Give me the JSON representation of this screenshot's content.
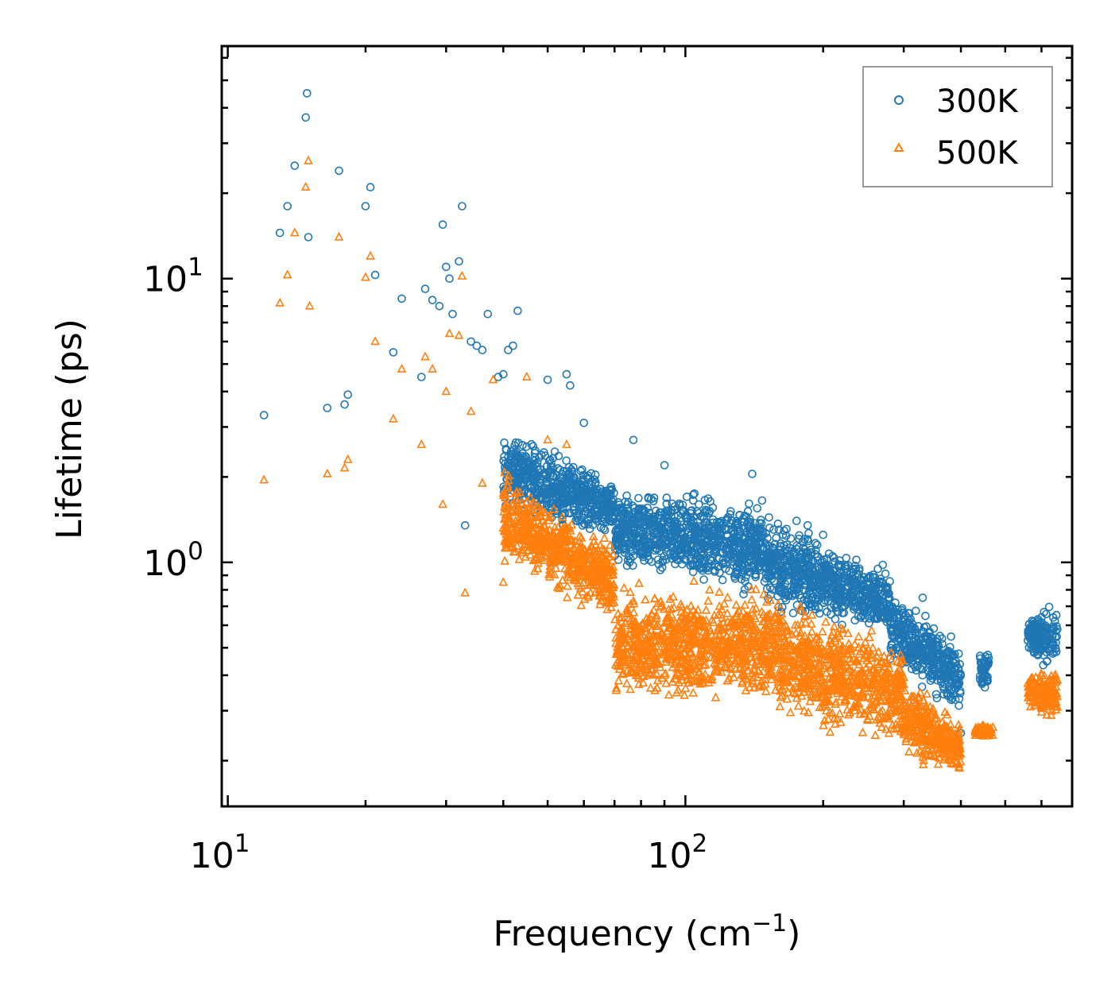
{
  "chart_data": {
    "type": "scatter",
    "title": "",
    "xlabel": "Frequency (cm",
    "xlabel_sup": "−1",
    "xlabel_close": ")",
    "ylabel": "Lifetime (ps)",
    "xscale": "log",
    "yscale": "log",
    "xlim": [
      9.7,
      700
    ],
    "ylim": [
      0.138,
      66
    ],
    "x_ticks": [
      {
        "value": 10,
        "base": "10",
        "exp": "1"
      },
      {
        "value": 100,
        "base": "10",
        "exp": "2"
      }
    ],
    "y_ticks": [
      {
        "value": 1,
        "base": "10",
        "exp": "0"
      },
      {
        "value": 10,
        "base": "10",
        "exp": "1"
      }
    ],
    "legend": {
      "position": "top-right"
    },
    "series": [
      {
        "name": "300K",
        "marker": "circle",
        "color": "#1f77b4",
        "sample_points": [
          [
            12,
            3.3
          ],
          [
            13,
            14.5
          ],
          [
            13.5,
            18
          ],
          [
            14,
            25
          ],
          [
            14.8,
            37
          ],
          [
            14.9,
            45
          ],
          [
            15,
            14
          ],
          [
            16.5,
            3.5
          ],
          [
            17.5,
            24
          ],
          [
            18,
            3.6
          ],
          [
            18.3,
            3.9
          ],
          [
            20,
            18
          ],
          [
            20.5,
            21
          ],
          [
            21,
            10.3
          ],
          [
            23,
            5.5
          ],
          [
            24,
            8.5
          ],
          [
            26.5,
            4.5
          ],
          [
            27,
            9.2
          ],
          [
            28,
            8.4
          ],
          [
            29,
            8
          ],
          [
            29.5,
            15.5
          ],
          [
            30,
            11
          ],
          [
            30.5,
            10
          ],
          [
            31,
            7.5
          ],
          [
            32,
            11.5
          ],
          [
            32.5,
            18
          ],
          [
            33,
            1.35
          ],
          [
            34,
            6
          ],
          [
            35,
            5.8
          ],
          [
            36,
            5.6
          ],
          [
            37,
            7.5
          ],
          [
            39,
            4.5
          ],
          [
            40,
            4.6
          ],
          [
            41,
            5.6
          ],
          [
            42,
            5.8
          ],
          [
            43,
            7.7
          ],
          [
            50,
            4.4
          ],
          [
            55,
            4.6
          ],
          [
            56,
            4.2
          ],
          [
            60,
            3.1
          ],
          [
            77,
            2.7
          ],
          [
            90,
            2.2
          ],
          [
            140,
            2.05
          ],
          [
            175,
            1.4
          ],
          [
            185,
            1.35
          ],
          [
            200,
            1.25
          ],
          [
            240,
            0.95
          ],
          [
            270,
            0.98
          ],
          [
            330,
            0.75
          ],
          [
            360,
            0.55
          ],
          [
            400,
            0.25
          ]
        ],
        "bands": [
          {
            "x": [
              40,
              70
            ],
            "y_low": [
              1.4,
              1.2
            ],
            "y_high": [
              3.2,
              2.0
            ]
          },
          {
            "x": [
              70,
              150
            ],
            "y_low": [
              0.9,
              0.7
            ],
            "y_high": [
              1.9,
              1.8
            ]
          },
          {
            "x": [
              150,
              280
            ],
            "y_low": [
              0.62,
              0.55
            ],
            "y_high": [
              1.6,
              0.95
            ]
          },
          {
            "x": [
              280,
              400
            ],
            "y_low": [
              0.4,
              0.28
            ],
            "y_high": [
              0.85,
              0.55
            ]
          },
          {
            "x": [
              440,
              460
            ],
            "y_low": [
              0.33,
              0.33
            ],
            "y_high": [
              0.52,
              0.52
            ]
          },
          {
            "x": [
              560,
              650
            ],
            "y_low": [
              0.44,
              0.4
            ],
            "y_high": [
              0.68,
              0.74
            ]
          }
        ]
      },
      {
        "name": "500K",
        "marker": "triangle",
        "color": "#ff7f0e",
        "sample_points": [
          [
            12,
            1.95
          ],
          [
            13,
            8.2
          ],
          [
            13.5,
            10.3
          ],
          [
            14,
            14.5
          ],
          [
            14.8,
            21
          ],
          [
            15,
            26
          ],
          [
            15.1,
            8
          ],
          [
            16.5,
            2.05
          ],
          [
            17.5,
            14
          ],
          [
            18,
            2.15
          ],
          [
            18.3,
            2.3
          ],
          [
            20,
            10.1
          ],
          [
            20.5,
            12
          ],
          [
            21,
            6
          ],
          [
            23,
            3.2
          ],
          [
            24,
            4.8
          ],
          [
            26.5,
            2.6
          ],
          [
            27,
            5.3
          ],
          [
            28,
            4.8
          ],
          [
            29.5,
            1.6
          ],
          [
            30,
            4
          ],
          [
            30.5,
            6.4
          ],
          [
            32,
            6.3
          ],
          [
            32.5,
            10.2
          ],
          [
            33,
            0.78
          ],
          [
            34,
            3.4
          ],
          [
            36,
            1.9
          ],
          [
            38,
            4.4
          ],
          [
            40,
            0.85
          ],
          [
            45,
            4.5
          ],
          [
            50,
            2.7
          ],
          [
            55,
            2.6
          ],
          [
            130,
            0.45
          ],
          [
            150,
            0.35
          ],
          [
            180,
            0.38
          ],
          [
            200,
            0.32
          ],
          [
            250,
            0.28
          ],
          [
            300,
            0.25
          ],
          [
            380,
            0.2
          ]
        ],
        "bands": [
          {
            "x": [
              40,
              70
            ],
            "y_low": [
              0.95,
              0.6
            ],
            "y_high": [
              2.2,
              1.2
            ]
          },
          {
            "x": [
              70,
              160
            ],
            "y_low": [
              0.31,
              0.3
            ],
            "y_high": [
              0.85,
              0.9
            ]
          },
          {
            "x": [
              160,
              300
            ],
            "y_low": [
              0.26,
              0.21
            ],
            "y_high": [
              0.8,
              0.55
            ]
          },
          {
            "x": [
              300,
              400
            ],
            "y_low": [
              0.2,
              0.17
            ],
            "y_high": [
              0.42,
              0.28
            ]
          },
          {
            "x": [
              430,
              470
            ],
            "y_low": [
              0.24,
              0.24
            ],
            "y_high": [
              0.27,
              0.27
            ]
          },
          {
            "x": [
              560,
              650
            ],
            "y_low": [
              0.29,
              0.27
            ],
            "y_high": [
              0.42,
              0.44
            ]
          }
        ]
      }
    ]
  }
}
